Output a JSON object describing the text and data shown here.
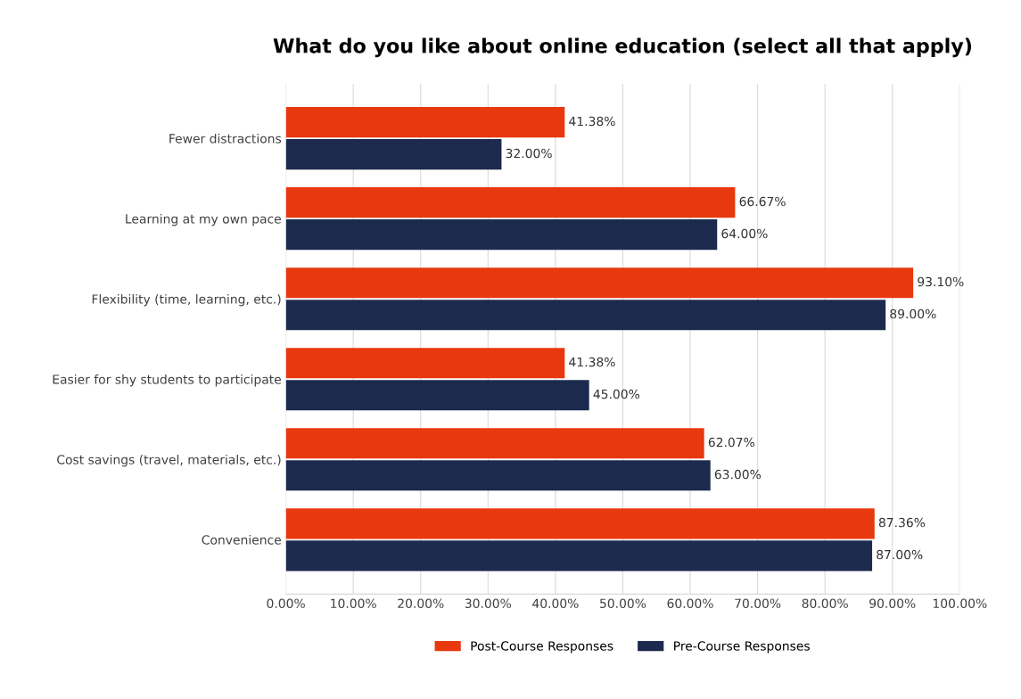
{
  "chart_data": {
    "type": "bar",
    "orientation": "horizontal",
    "title": "What do you like about online education (select all that apply)",
    "categories": [
      "Fewer distractions",
      "Learning at my own pace",
      "Flexibility (time, learning, etc.)",
      "Easier for shy students to participate",
      "Cost savings (travel, materials, etc.)",
      "Convenience"
    ],
    "series": [
      {
        "name": "Post-Course Responses",
        "color": "#e8380d",
        "values": [
          41.38,
          66.67,
          93.1,
          41.38,
          62.07,
          87.36
        ],
        "value_labels": [
          "41.38%",
          "66.67%",
          "93.10%",
          "41.38%",
          "62.07%",
          "87.36%"
        ]
      },
      {
        "name": "Pre-Course Responses",
        "color": "#1c2a4e",
        "values": [
          32,
          64,
          89,
          45,
          63,
          87
        ],
        "value_labels": [
          "32.00%",
          "64.00%",
          "89.00%",
          "45.00%",
          "63.00%",
          "87.00%"
        ]
      }
    ],
    "xlim": [
      0,
      100
    ],
    "xticks": [
      {
        "value": 0,
        "label": "0.00%"
      },
      {
        "value": 10,
        "label": "10.00%"
      },
      {
        "value": 20,
        "label": "20.00%"
      },
      {
        "value": 30,
        "label": "30.00%"
      },
      {
        "value": 40,
        "label": "40.00%"
      },
      {
        "value": 50,
        "label": "50.00%"
      },
      {
        "value": 60,
        "label": "60.00%"
      },
      {
        "value": 70,
        "label": "70.00%"
      },
      {
        "value": 80,
        "label": "80.00%"
      },
      {
        "value": 90,
        "label": "90.00%"
      },
      {
        "value": 100,
        "label": "100.00%"
      }
    ],
    "grid": "x",
    "legend": "bottom"
  }
}
